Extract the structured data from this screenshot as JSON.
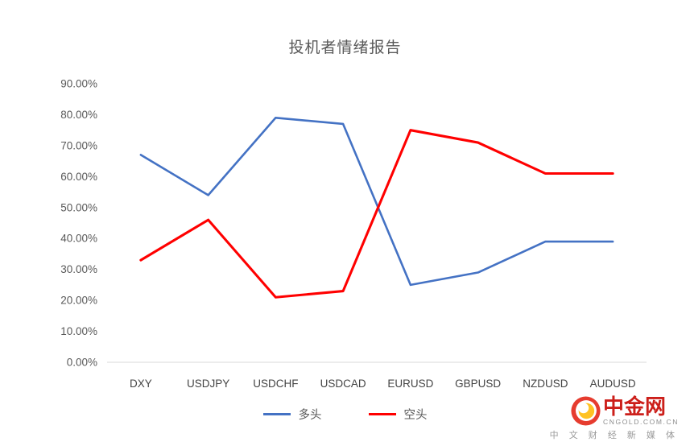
{
  "chart_data": {
    "type": "line",
    "title": "投机者情绪报告",
    "categories": [
      "DXY",
      "USDJPY",
      "USDCHF",
      "USDCAD",
      "EURUSD",
      "GBPUSD",
      "NZDUSD",
      "AUDUSD"
    ],
    "series": [
      {
        "name": "多头",
        "color": "#4472c4",
        "values": [
          67,
          54,
          79,
          77,
          25,
          29,
          39,
          39
        ]
      },
      {
        "name": "空头",
        "color": "#ff0000",
        "values": [
          33,
          46,
          21,
          23,
          75,
          71,
          61,
          61
        ]
      }
    ],
    "value_unit": "percent",
    "ylim": [
      0,
      90
    ],
    "ytick_step": 10,
    "ytick_labels": [
      "0.00%",
      "10.00%",
      "20.00%",
      "30.00%",
      "40.00%",
      "50.00%",
      "60.00%",
      "70.00%",
      "80.00%",
      "90.00%"
    ],
    "xlabel": "",
    "ylabel": "",
    "grid": false,
    "legend_position": "bottom"
  },
  "watermark": {
    "brand": "中金网",
    "brand_color": "#cc1f1a",
    "domain": "CNGOLD.COM.CN",
    "tagline": "中 文 财 经 新 媒 体",
    "icon": {
      "ring_color": "#e63c2f",
      "flame_color": "#ffc222"
    }
  }
}
